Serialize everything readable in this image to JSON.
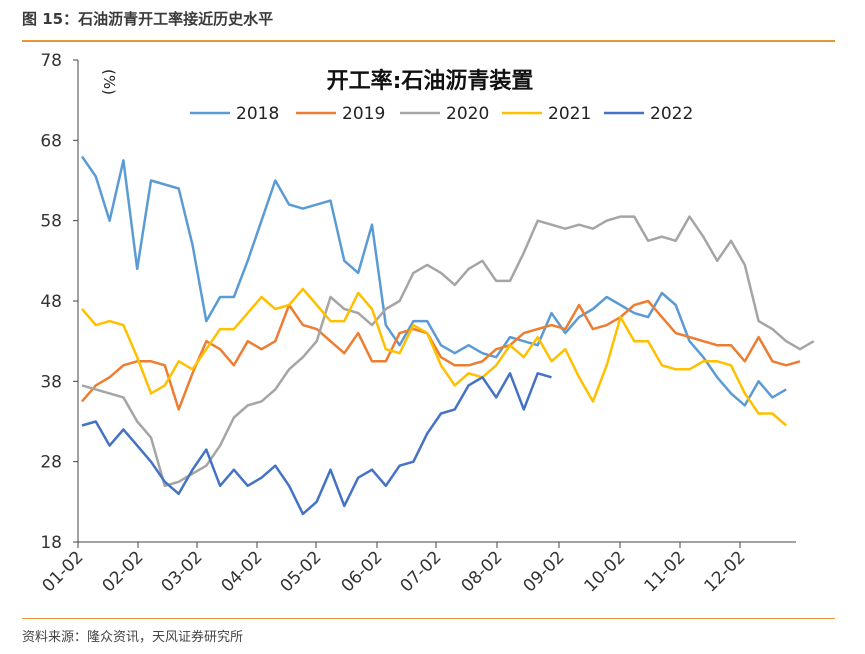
{
  "figure": {
    "title": "图 15：石油沥青开工率接近历史水平",
    "source": "资料来源：隆众资讯，天风证券研究所"
  },
  "chart_data": {
    "type": "line",
    "title": "开工率:石油沥青装置",
    "unit_label": "(%)",
    "ylim": [
      18,
      78
    ],
    "yticks": [
      18,
      28,
      38,
      48,
      58,
      68,
      78
    ],
    "xticks": [
      "01-02",
      "02-02",
      "03-02",
      "04-02",
      "05-02",
      "06-02",
      "07-02",
      "08-02",
      "09-02",
      "10-02",
      "11-02",
      "12-02"
    ],
    "legend_position": "top",
    "grid": false,
    "series": [
      {
        "name": "2018",
        "color": "#5b9bd5",
        "values": [
          66,
          63.5,
          58,
          65.5,
          52,
          63,
          62.5,
          62,
          55,
          45.5,
          48.5,
          48.5,
          53,
          58,
          63,
          60,
          59.5,
          60,
          60.5,
          53,
          51.5,
          57.5,
          45,
          42.5,
          45.5,
          45.5,
          42.5,
          41.5,
          42.5,
          41.5,
          41,
          43.5,
          43,
          42.5,
          46.5,
          44,
          46,
          47,
          48.5,
          47.5,
          46.5,
          46,
          49,
          47.5,
          43,
          41,
          38.5,
          36.5,
          35,
          38,
          36,
          37
        ]
      },
      {
        "name": "2019",
        "color": "#ed7d31",
        "values": [
          35.5,
          37.5,
          38.5,
          40,
          40.5,
          40.5,
          40,
          34.5,
          39,
          43,
          42,
          40,
          43,
          42,
          43,
          47.5,
          45,
          44.5,
          43,
          41.5,
          44,
          40.5,
          40.5,
          44,
          44.5,
          44,
          41,
          40,
          40,
          40.5,
          42,
          42.5,
          44,
          44.5,
          45,
          44.5,
          47.5,
          44.5,
          45,
          46,
          47.5,
          48,
          46,
          44,
          43.5,
          43,
          42.5,
          42.5,
          40.5,
          43.5,
          40.5,
          40,
          40.5
        ]
      },
      {
        "name": "2020",
        "color": "#a5a5a5",
        "values": [
          37.5,
          37,
          36.5,
          36,
          33,
          31,
          25,
          25.5,
          26.5,
          27.5,
          30,
          33.5,
          35,
          35.5,
          37,
          39.5,
          41,
          43,
          48.5,
          47,
          46.5,
          45,
          47,
          48,
          51.5,
          52.5,
          51.5,
          50,
          52,
          53,
          50.5,
          50.5,
          54,
          58,
          57.5,
          57,
          57.5,
          57,
          58,
          58.5,
          58.5,
          55.5,
          56,
          55.5,
          58.5,
          56,
          53,
          55.5,
          52.5,
          45.5,
          44.5,
          43,
          42,
          43
        ]
      },
      {
        "name": "2021",
        "color": "#ffc000",
        "values": [
          47,
          45,
          45.5,
          45,
          41,
          36.5,
          37.5,
          40.5,
          39.5,
          42,
          44.5,
          44.5,
          46.5,
          48.5,
          47,
          47.5,
          49.5,
          47.5,
          45.5,
          45.5,
          49,
          47,
          42,
          41.5,
          45,
          44,
          40,
          37.5,
          39,
          38.5,
          40,
          42.5,
          41,
          43.5,
          40.5,
          42,
          38.5,
          35.5,
          40,
          46,
          43,
          43,
          40,
          39.5,
          39.5,
          40.5,
          40.5,
          40,
          36.5,
          34,
          34,
          32.5
        ]
      },
      {
        "name": "2022",
        "color": "#4472c4",
        "values": [
          32.5,
          33,
          30,
          32,
          30,
          28,
          25.5,
          24,
          27,
          29.5,
          25,
          27,
          25,
          26,
          27.5,
          25,
          21.5,
          23,
          27,
          22.5,
          26,
          27,
          25,
          27.5,
          28,
          31.5,
          34,
          34.5,
          37.5,
          38.5,
          36,
          39,
          34.5,
          39,
          38.5
        ]
      }
    ]
  }
}
